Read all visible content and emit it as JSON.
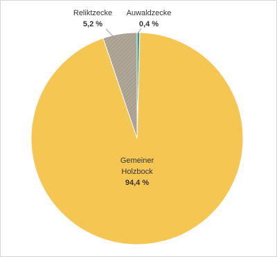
{
  "chart_data": {
    "type": "pie",
    "categories": [
      "Auwaldzecke",
      "Gemeiner Holzbock",
      "Reliktzecke"
    ],
    "values": [
      0.4,
      94.4,
      5.2
    ],
    "value_labels": [
      "0,4 %",
      "94,4 %",
      "5,2 %"
    ],
    "colors": [
      "#2a9d8f",
      "#f6c653",
      "#a89f91"
    ]
  }
}
